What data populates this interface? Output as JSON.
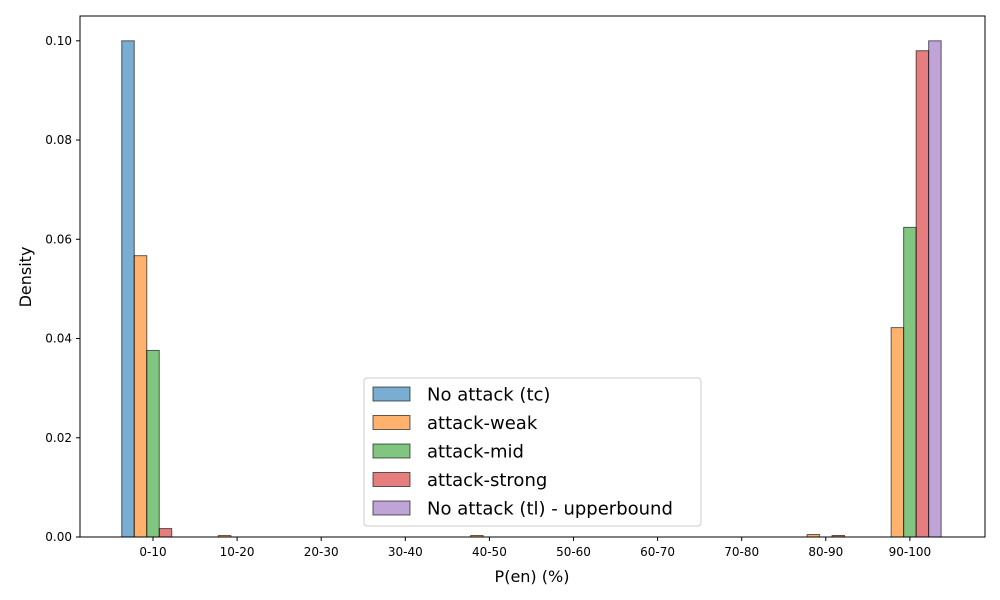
{
  "chart_data": {
    "type": "bar",
    "xlabel": "P(en) (%)",
    "ylabel": "Density",
    "categories": [
      "0-10",
      "10-20",
      "20-30",
      "30-40",
      "40-50",
      "50-60",
      "60-70",
      "70-80",
      "80-90",
      "90-100"
    ],
    "ylim": [
      0,
      0.105
    ],
    "yticks": [
      "0.00",
      "0.02",
      "0.04",
      "0.06",
      "0.08",
      "0.10"
    ],
    "grid": false,
    "legend_position": "lower-center",
    "series": [
      {
        "name": "No attack (tc)",
        "color": "#1f77b4",
        "values": [
          0.1,
          0,
          0,
          0,
          0,
          0,
          0,
          0,
          0,
          0
        ]
      },
      {
        "name": "attack-weak",
        "color": "#ff7f0e",
        "values": [
          0.0567,
          0.0003,
          0,
          0,
          0.0003,
          0,
          0,
          0,
          0.0005,
          0.0422
        ]
      },
      {
        "name": "attack-mid",
        "color": "#2ca02c",
        "values": [
          0.0376,
          0,
          0,
          0,
          0,
          0,
          0,
          0,
          0,
          0.0624
        ]
      },
      {
        "name": "attack-strong",
        "color": "#d62728",
        "values": [
          0.0017,
          0,
          0,
          0,
          0,
          0,
          0,
          0,
          0.0003,
          0.098
        ]
      },
      {
        "name": "No attack (tl) - upperbound",
        "color": "#9467bd",
        "values": [
          0,
          0,
          0,
          0,
          0,
          0,
          0,
          0,
          0,
          0.1
        ]
      }
    ]
  }
}
